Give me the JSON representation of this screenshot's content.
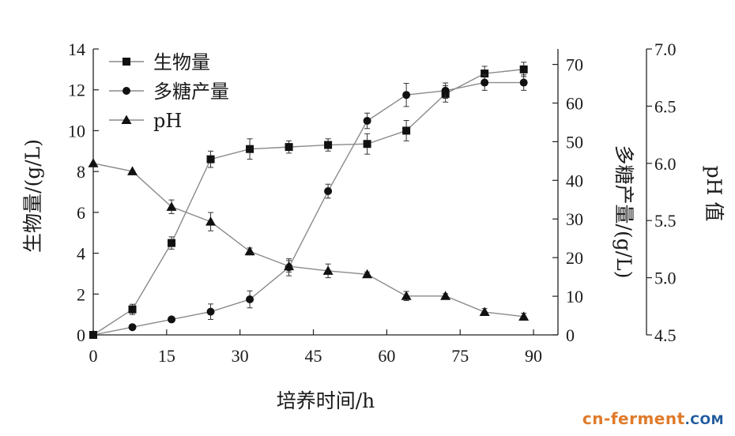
{
  "chart_data": {
    "type": "line",
    "xlabel": "培养时间/h",
    "x_ticks": [
      "0",
      "15",
      "30",
      "45",
      "60",
      "75",
      "90"
    ],
    "xlim": [
      0,
      95
    ],
    "axes": {
      "left": {
        "label": "生物量/(g/L)",
        "ylim": [
          0,
          14
        ],
        "ticks": [
          "0",
          "2",
          "4",
          "6",
          "8",
          "10",
          "12",
          "14"
        ]
      },
      "right1": {
        "label": "多糖产量/(g/L)",
        "ylim": [
          0,
          74
        ],
        "ticks": [
          "0",
          "10",
          "20",
          "30",
          "40",
          "50",
          "60",
          "70"
        ]
      },
      "right2": {
        "label": "pH 值",
        "ylim": [
          4.5,
          7.0
        ],
        "ticks": [
          "4.5",
          "5.0",
          "5.5",
          "6.0",
          "6.5",
          "7.0"
        ]
      }
    },
    "legend_position": "top-left",
    "series": [
      {
        "name": "生物量",
        "axis": "left",
        "marker": "square",
        "x": [
          0,
          8,
          16,
          24,
          32,
          40,
          48,
          56,
          64,
          72,
          80,
          88
        ],
        "y": [
          0,
          1.25,
          4.5,
          8.6,
          9.1,
          9.2,
          9.3,
          9.35,
          10.0,
          11.8,
          12.8,
          13.0
        ],
        "err": [
          0,
          0.25,
          0.3,
          0.4,
          0.5,
          0.3,
          0.3,
          0.5,
          0.5,
          0.4,
          0.35,
          0.35
        ]
      },
      {
        "name": "多糖产量",
        "axis": "right1",
        "marker": "circle",
        "x": [
          0,
          8,
          16,
          24,
          32,
          40,
          48,
          56,
          64,
          72,
          80,
          88
        ],
        "y": [
          0,
          2,
          4,
          6,
          9.2,
          17.5,
          37.2,
          55.4,
          62.1,
          63.2,
          65.3,
          65.3
        ],
        "err": [
          0,
          0.5,
          0.6,
          2,
          2.2,
          2.2,
          1.8,
          2,
          3,
          2,
          2,
          2
        ]
      },
      {
        "name": "pH",
        "axis": "right2",
        "marker": "triangle",
        "x": [
          0,
          8,
          16,
          24,
          32,
          40,
          48,
          56,
          64,
          72,
          80,
          88
        ],
        "y": [
          6.0,
          5.93,
          5.62,
          5.49,
          5.23,
          5.1,
          5.06,
          5.03,
          4.84,
          4.84,
          4.7,
          4.66
        ],
        "err": [
          0,
          0,
          0.06,
          0.08,
          0.03,
          0.05,
          0.06,
          0.02,
          0.04,
          0.02,
          0.03,
          0.03
        ]
      }
    ]
  },
  "watermark": {
    "part1": "cn-ferment",
    "part2": ".COM"
  }
}
